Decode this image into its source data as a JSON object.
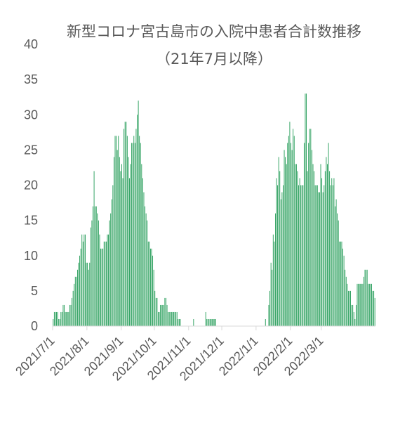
{
  "chart_data": {
    "type": "bar",
    "title": "新型コロナ宮古島市の入院中患者合計数推移",
    "subtitle": "（21年7月以降）",
    "xlabel": "",
    "ylabel": "",
    "ylim": [
      0,
      40
    ],
    "yticks": [
      0,
      5,
      10,
      15,
      20,
      25,
      30,
      35,
      40
    ],
    "grid": false,
    "legend": "none",
    "bar_color": "#1a9850",
    "x_start": "2021-07-01",
    "x_tick_labels": [
      "2021/7/1",
      "2021/8/1",
      "2021/9/1",
      "2021/10/1",
      "2021/11/1",
      "2021/12/1",
      "2022/1/1",
      "2022/2/1",
      "2022/3/1"
    ],
    "series": [
      {
        "values": [
          1,
          2,
          2,
          2,
          2,
          1,
          1,
          2,
          2,
          3,
          3,
          2,
          2,
          2,
          2,
          3,
          3,
          4,
          5,
          6,
          7,
          7,
          8,
          9,
          10,
          11,
          13,
          12,
          13,
          13,
          9,
          9,
          8,
          9,
          14,
          15,
          17,
          22,
          17,
          17,
          16,
          15,
          13,
          11,
          11,
          11,
          12,
          12,
          12,
          13,
          13,
          15,
          16,
          18,
          20,
          24,
          27,
          27,
          25,
          27,
          24,
          22,
          23,
          21,
          28,
          29,
          29,
          27,
          24,
          21,
          23,
          26,
          26,
          27,
          26,
          28,
          30,
          32,
          27,
          26,
          23,
          21,
          19,
          17,
          16,
          15,
          12,
          12,
          11,
          11,
          10,
          8,
          5,
          4,
          4,
          2,
          2,
          3,
          3,
          3,
          3,
          4,
          4,
          3,
          2,
          2,
          2,
          2,
          2,
          2,
          2,
          2,
          2,
          1,
          1,
          1,
          0,
          0,
          0,
          0,
          0,
          0,
          0,
          0,
          0,
          0,
          0,
          1,
          0,
          0,
          0,
          0,
          0,
          0,
          0,
          0,
          0,
          0,
          2,
          1,
          1,
          1,
          1,
          1,
          1,
          1,
          1,
          1,
          0,
          0,
          0,
          0,
          0,
          0,
          0,
          0,
          0,
          0,
          0,
          0,
          0,
          0,
          0,
          0,
          0,
          0,
          0,
          0,
          0,
          0,
          0,
          0,
          0,
          0,
          0,
          0,
          0,
          0,
          0,
          0,
          0,
          0,
          0,
          0,
          0,
          0,
          0,
          0,
          0,
          0,
          0,
          0,
          1,
          0,
          0,
          3,
          5,
          9,
          8,
          13,
          12,
          16,
          21,
          20,
          24,
          22,
          18,
          19,
          20,
          25,
          24,
          23,
          26,
          27,
          29,
          26,
          25,
          28,
          27,
          23,
          23,
          22,
          20,
          21,
          20,
          20,
          20,
          26,
          33,
          33,
          22,
          26,
          28,
          28,
          25,
          23,
          22,
          20,
          20,
          20,
          19,
          19,
          23,
          21,
          19,
          20,
          22,
          24,
          23,
          26,
          22,
          20,
          21,
          20,
          21,
          17,
          18,
          16,
          15,
          12,
          12,
          12,
          11,
          10,
          8,
          7,
          6,
          5,
          5,
          5,
          3,
          3,
          2,
          1,
          3,
          6,
          6,
          6,
          6,
          6,
          6,
          7,
          8,
          8,
          8,
          6,
          6,
          6,
          6,
          5,
          5,
          4
        ]
      }
    ]
  }
}
